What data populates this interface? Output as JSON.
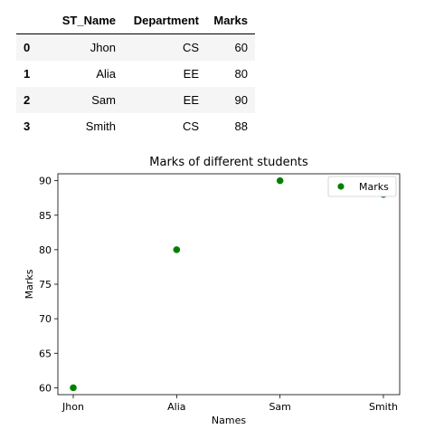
{
  "table": {
    "columns": [
      "",
      "ST_Name",
      "Department",
      "Marks"
    ],
    "rows": [
      {
        "index": "0",
        "ST_Name": "Jhon",
        "Department": "CS",
        "Marks": "60"
      },
      {
        "index": "1",
        "ST_Name": "Alia",
        "Department": "EE",
        "Marks": "80"
      },
      {
        "index": "2",
        "ST_Name": "Sam",
        "Department": "EE",
        "Marks": "90"
      },
      {
        "index": "3",
        "ST_Name": "Smith",
        "Department": "CS",
        "Marks": "88"
      }
    ]
  },
  "chart_data": {
    "type": "scatter",
    "title": "Marks of different students",
    "xlabel": "Names",
    "ylabel": "Marks",
    "categories": [
      "Jhon",
      "Alia",
      "Sam",
      "Smith"
    ],
    "series": [
      {
        "name": "Marks",
        "values": [
          60,
          80,
          90,
          88
        ],
        "color": "#008000"
      }
    ],
    "ylim": [
      59.0,
      91.0
    ],
    "yticks": [
      60,
      65,
      70,
      75,
      80,
      85,
      90
    ],
    "grid": false,
    "legend_position": "top-right"
  }
}
